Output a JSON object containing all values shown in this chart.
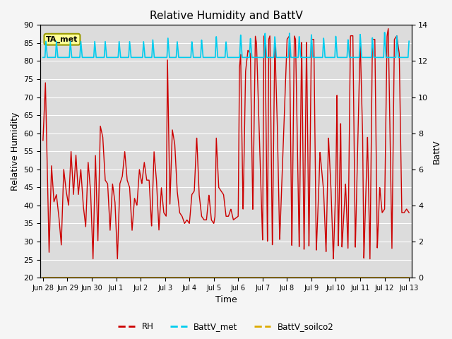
{
  "title": "Relative Humidity and BattV",
  "ylabel_left": "Relative Humidity",
  "ylabel_right": "BattV",
  "xlabel": "Time",
  "ylim_left": [
    20,
    90
  ],
  "ylim_right": [
    0,
    14
  ],
  "yticks_left": [
    20,
    25,
    30,
    35,
    40,
    45,
    50,
    55,
    60,
    65,
    70,
    75,
    80,
    85,
    90
  ],
  "yticks_right": [
    0,
    2,
    4,
    6,
    8,
    10,
    12,
    14
  ],
  "bg_color": "#dcdcdc",
  "grid_color": "#ffffff",
  "rh_color": "#cc0000",
  "battv_met_color": "#00ccee",
  "battv_soilco2_color": "#ddaa00",
  "annotation_text": "TA_met",
  "annotation_bg": "#ffff99",
  "annotation_border": "#999900",
  "legend_rh_label": "RH",
  "legend_battv_met_label": "BattV_met",
  "legend_battv_soilco2_label": "BattV_soilco2",
  "x_start_day": -0.1,
  "x_end_day": 15.1,
  "xtick_positions": [
    0,
    1,
    2,
    3,
    4,
    5,
    6,
    7,
    8,
    9,
    10,
    11,
    12,
    13,
    14,
    15
  ],
  "xtick_labels": [
    "Jun 28",
    "Jun 29",
    "Jun 30",
    "Jul 1",
    "Jul 2",
    "Jul 3",
    "Jul 4",
    "Jul 5",
    "Jul 6",
    "Jul 7",
    "Jul 8",
    "Jul 9",
    "Jul 10",
    "Jul 11",
    "Jul 12",
    "Jul 13"
  ]
}
